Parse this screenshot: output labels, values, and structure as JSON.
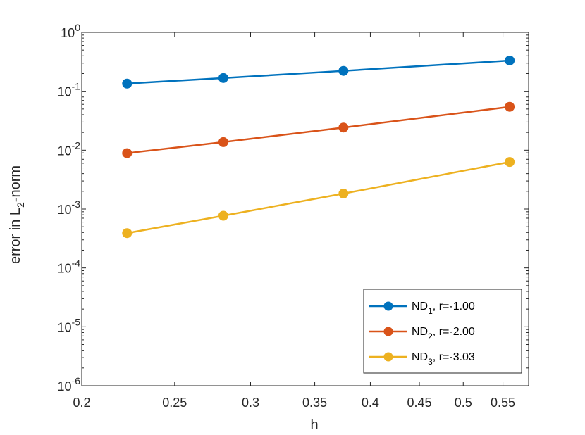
{
  "chart_data": {
    "type": "line",
    "title": "",
    "xlabel": "h",
    "ylabel": {
      "base": "error in L",
      "sub": "2",
      "suffix": "-norm"
    },
    "x_scale": "log",
    "y_scale": "log",
    "xlim": [
      0.2,
      0.585
    ],
    "ylim": [
      1e-06,
      1
    ],
    "x_ticks": [
      0.2,
      0.25,
      0.3,
      0.35,
      0.4,
      0.45,
      0.5,
      0.55
    ],
    "x_tick_labels": [
      "0.2",
      "0.25",
      "0.3",
      "0.35",
      "0.4",
      "0.45",
      "0.5",
      "0.55"
    ],
    "y_ticks": [
      {
        "value": 1e-06,
        "base": "10",
        "exp": "-6"
      },
      {
        "value": 1e-05,
        "base": "10",
        "exp": "-5"
      },
      {
        "value": 0.0001,
        "base": "10",
        "exp": "-4"
      },
      {
        "value": 0.001,
        "base": "10",
        "exp": "-3"
      },
      {
        "value": 0.01,
        "base": "10",
        "exp": "-2"
      },
      {
        "value": 0.1,
        "base": "10",
        "exp": "-1"
      },
      {
        "value": 1,
        "base": "10",
        "exp": "0"
      }
    ],
    "grid": false,
    "legend_position": "bottom-right",
    "x": [
      0.223,
      0.281,
      0.375,
      0.559
    ],
    "series": [
      {
        "name": "ND",
        "sub": "1",
        "suffix": ", r=-1.00",
        "color": "#0072BD",
        "values": [
          0.135,
          0.168,
          0.222,
          0.333
        ]
      },
      {
        "name": "ND",
        "sub": "2",
        "suffix": ", r=-2.00",
        "color": "#D95319",
        "values": [
          0.0089,
          0.0137,
          0.0242,
          0.0545
        ]
      },
      {
        "name": "ND",
        "sub": "3",
        "suffix": ", r=-3.03",
        "color": "#EDB120",
        "values": [
          0.00039,
          0.00077,
          0.00183,
          0.0063
        ]
      }
    ]
  }
}
